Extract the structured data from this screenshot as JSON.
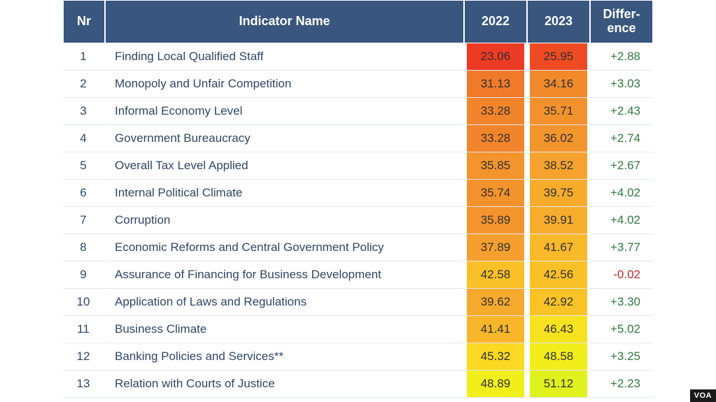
{
  "badge": "VOA",
  "table": {
    "columns": {
      "nr": "Nr",
      "name": "Indicator Name",
      "y2022": "2022",
      "y2023": "2023",
      "diff": "Differ-\nence"
    },
    "diff_colors": {
      "positive": "#2f7a3d",
      "negative": "#c02828"
    },
    "header_bg": "#38567e",
    "header_fg": "#ffffff",
    "body_fg": "#2d4766",
    "row_border": "#e2e6ec",
    "rows": [
      {
        "nr": 1,
        "name": "Finding Local Qualified Staff",
        "y2022": "23.06",
        "c2022": "#ed3a24",
        "y2023": "25.95",
        "c2023": "#ef4b22",
        "diff": "+2.88"
      },
      {
        "nr": 2,
        "name": "Monopoly and Unfair Competition",
        "y2022": "31.13",
        "c2022": "#f07a2a",
        "y2023": "34.16",
        "c2023": "#f28a2c",
        "diff": "+3.03"
      },
      {
        "nr": 3,
        "name": "Informal Economy Level",
        "y2022": "33.28",
        "c2022": "#f2852b",
        "y2023": "35.71",
        "c2023": "#f3922d",
        "diff": "+2.43"
      },
      {
        "nr": 4,
        "name": "Government Bureaucracy",
        "y2022": "33.28",
        "c2022": "#f2852b",
        "y2023": "36.02",
        "c2023": "#f3952d",
        "diff": "+2.74"
      },
      {
        "nr": 5,
        "name": "Overall Tax Level Applied",
        "y2022": "35.85",
        "c2022": "#f3942d",
        "y2023": "38.52",
        "c2023": "#f5a32e",
        "diff": "+2.67"
      },
      {
        "nr": 6,
        "name": "Internal Political Climate",
        "y2022": "35.74",
        "c2022": "#f3932d",
        "y2023": "39.75",
        "c2023": "#f6ab2d",
        "diff": "+4.02"
      },
      {
        "nr": 7,
        "name": "Corruption",
        "y2022": "35.89",
        "c2022": "#f3942d",
        "y2023": "39.91",
        "c2023": "#f6ac2d",
        "diff": "+4.02"
      },
      {
        "nr": 8,
        "name": "Economic Reforms and Central Government Policy",
        "y2022": "37.89",
        "c2022": "#f5a02e",
        "y2023": "41.67",
        "c2023": "#f8b92a",
        "diff": "+3.77"
      },
      {
        "nr": 9,
        "name": "Assurance of Financing for Business Development",
        "y2022": "42.58",
        "c2022": "#f9c027",
        "y2023": "42.56",
        "c2023": "#f9c027",
        "diff": "-0.02"
      },
      {
        "nr": 10,
        "name": "Application of Laws and Regulations",
        "y2022": "39.62",
        "c2022": "#f6aa2d",
        "y2023": "42.92",
        "c2023": "#f9c326",
        "diff": "+3.30"
      },
      {
        "nr": 11,
        "name": "Business Climate",
        "y2022": "41.41",
        "c2022": "#f8b72b",
        "y2023": "46.43",
        "c2023": "#f6e21e",
        "diff": "+5.02"
      },
      {
        "nr": 12,
        "name": "Banking Policies and Services**",
        "y2022": "45.32",
        "c2022": "#fbd821",
        "y2023": "48.58",
        "c2023": "#f2ee1b",
        "diff": "+3.25"
      },
      {
        "nr": 13,
        "name": "Relation with Courts of Justice",
        "y2022": "48.89",
        "c2022": "#f1ef1b",
        "y2023": "51.12",
        "c2023": "#e0f21d",
        "diff": "+2.23"
      }
    ]
  }
}
